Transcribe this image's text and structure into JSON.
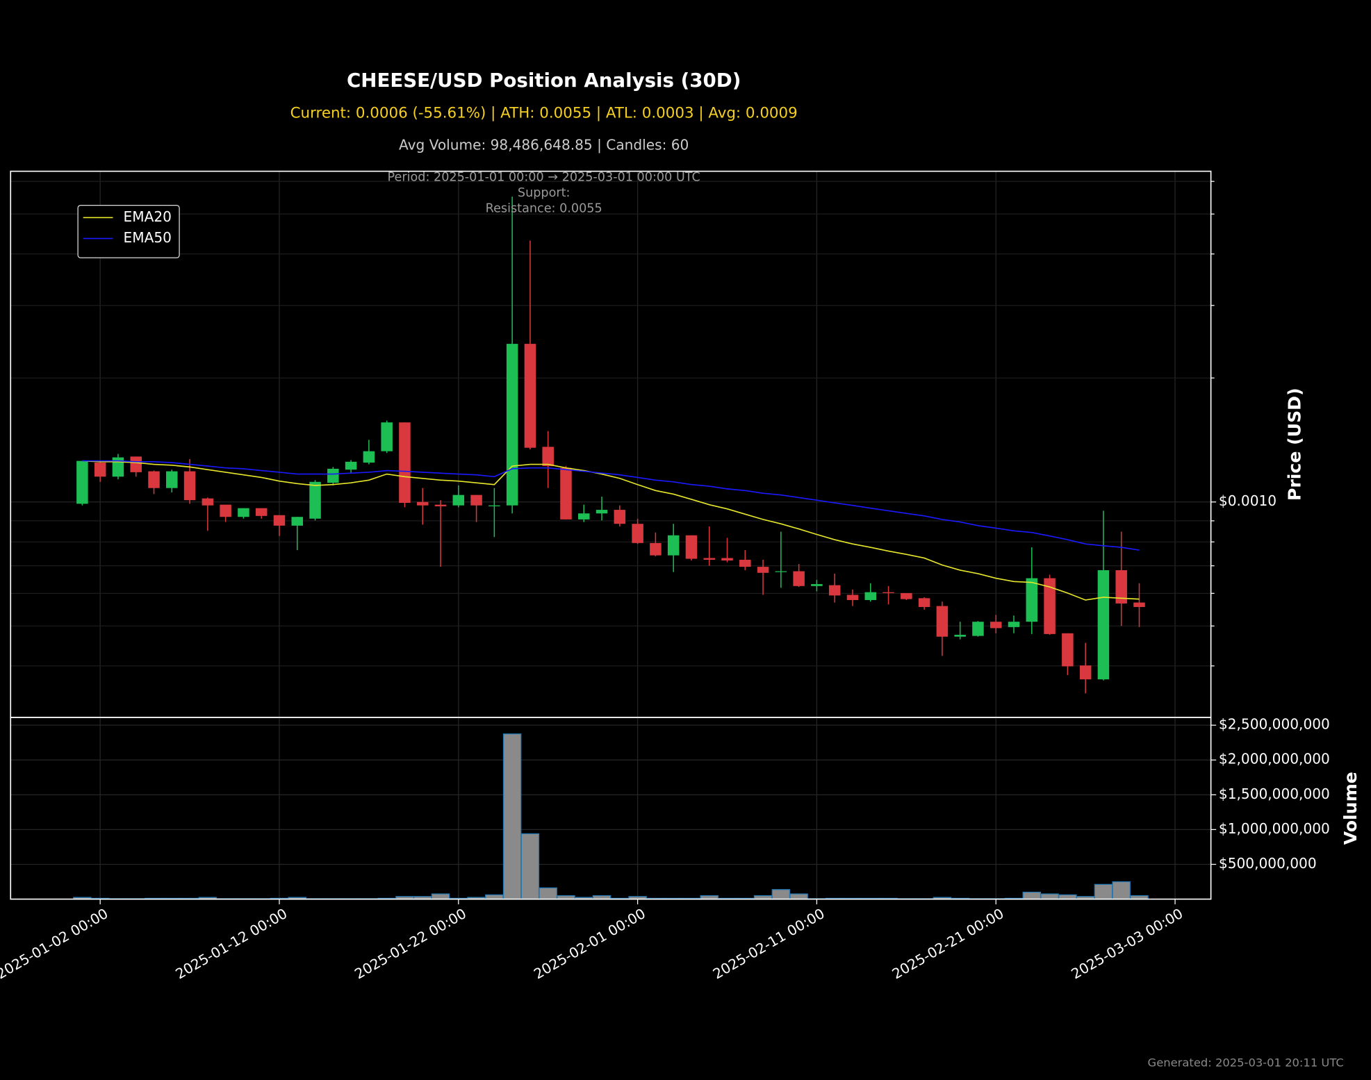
{
  "chart_data": [
    {
      "type": "candlestick",
      "title": "CHEESE/USD Position Analysis (30D)",
      "subtitle": "Current: 0.0006 (-55.61%) | ATH: 0.0055 | ATL: 0.0003 | Avg: 0.0009",
      "stats": "Avg Volume: 98,486,648.85 | Candles: 60",
      "annotations": [
        "Period: 2025-01-01 00:00 → 2025-03-01 00:00 UTC",
        "Support:",
        "Resistance: 0.0055"
      ],
      "ylabel": "Price (USD)",
      "log_scale": true,
      "grid": true,
      "legend": "upper left",
      "up_color": "#1dbf55",
      "down_color": "#d9393e",
      "xlim": [
        "2024-12-28",
        "2025-03-05"
      ],
      "ylim": [
        0.0003,
        0.00635
      ],
      "yticks": [
        {
          "value": 0.001,
          "label": "$0.0010"
        }
      ],
      "yticks_minor": [
        0.0004,
        0.0005,
        0.0006,
        0.0007,
        0.0008,
        0.0009,
        0.002,
        0.003,
        0.004,
        0.005,
        0.006
      ],
      "x": [
        "2025-01-01",
        "2025-01-02",
        "2025-01-03",
        "2025-01-04",
        "2025-01-05",
        "2025-01-06",
        "2025-01-07",
        "2025-01-08",
        "2025-01-09",
        "2025-01-10",
        "2025-01-11",
        "2025-01-12",
        "2025-01-13",
        "2025-01-14",
        "2025-01-15",
        "2025-01-16",
        "2025-01-17",
        "2025-01-18",
        "2025-01-19",
        "2025-01-20",
        "2025-01-21",
        "2025-01-22",
        "2025-01-23",
        "2025-01-24",
        "2025-01-25",
        "2025-01-26",
        "2025-01-27",
        "2025-01-28",
        "2025-01-29",
        "2025-01-30",
        "2025-01-31",
        "2025-02-01",
        "2025-02-02",
        "2025-02-03",
        "2025-02-04",
        "2025-02-05",
        "2025-02-06",
        "2025-02-07",
        "2025-02-08",
        "2025-02-09",
        "2025-02-10",
        "2025-02-11",
        "2025-02-12",
        "2025-02-13",
        "2025-02-14",
        "2025-02-15",
        "2025-02-16",
        "2025-02-17",
        "2025-02-18",
        "2025-02-19",
        "2025-02-20",
        "2025-02-21",
        "2025-02-22",
        "2025-02-23",
        "2025-02-24",
        "2025-02-25",
        "2025-02-26",
        "2025-02-27",
        "2025-02-28",
        "2025-03-01"
      ],
      "open": [
        0.00099,
        0.001246,
        0.001152,
        0.001289,
        0.001187,
        0.001081,
        0.001187,
        0.00102,
        0.000985,
        0.00092,
        0.000966,
        0.000929,
        0.000876,
        0.000911,
        0.001113,
        0.001198,
        0.001246,
        0.001328,
        0.00156,
        0.001,
        0.000985,
        0.000981,
        0.00104,
        0.000976,
        0.000981,
        0.00242,
        0.001361,
        0.00121,
        0.000907,
        0.000938,
        0.000957,
        0.000885,
        0.000795,
        0.000742,
        0.00083,
        0.000731,
        0.000731,
        0.000724,
        0.000696,
        0.000676,
        0.000679,
        0.000625,
        0.000628,
        0.000595,
        0.000578,
        0.000604,
        0.000601,
        0.000584,
        0.000559,
        0.000471,
        0.000473,
        0.000512,
        0.000497,
        0.000512,
        0.000653,
        0.00048,
        0.000401,
        0.000371,
        0.000683,
        0.00057
      ],
      "high": [
        0.001258,
        0.001252,
        0.001308,
        0.001289,
        0.001192,
        0.001198,
        0.001271,
        0.001025,
        0.000985,
        0.000966,
        0.000966,
        0.000929,
        0.00092,
        0.00113,
        0.001216,
        0.001264,
        0.001415,
        0.001576,
        0.00156,
        0.001081,
        0.00101,
        0.001097,
        0.00104,
        0.001081,
        0.00551,
        0.00431,
        0.001486,
        0.001222,
        0.000985,
        0.00103,
        0.000981,
        0.000911,
        0.000843,
        0.000885,
        0.00083,
        0.000872,
        0.000818,
        0.000764,
        0.000724,
        0.000847,
        0.000707,
        0.000647,
        0.00067,
        0.000613,
        0.000635,
        0.000625,
        0.000601,
        0.000587,
        0.000573,
        0.000512,
        0.000514,
        0.000532,
        0.00053,
        0.000776,
        0.000666,
        0.00048,
        0.000455,
        0.000952,
        0.000847,
        0.000635
      ],
      "low": [
        0.000981,
        0.001119,
        0.001135,
        0.001152,
        0.001045,
        0.001055,
        0.00099,
        0.000851,
        0.000894,
        0.000911,
        0.000911,
        0.000827,
        0.000764,
        0.000902,
        0.001097,
        0.001175,
        0.001234,
        0.001315,
        0.000971,
        0.000881,
        0.000696,
        0.000971,
        0.000894,
        0.000822,
        0.000938,
        0.001341,
        0.001081,
        0.000907,
        0.000894,
        0.000902,
        0.000872,
        0.000791,
        0.000738,
        0.000676,
        0.000721,
        0.0007,
        0.000714,
        0.000683,
        0.000595,
        0.000619,
        0.000622,
        0.000607,
        0.00057,
        0.000559,
        0.000573,
        0.000564,
        0.000578,
        0.000548,
        0.000423,
        0.000464,
        0.000471,
        0.00048,
        0.00048,
        0.000478,
        0.000476,
        0.00038,
        0.000343,
        0.000369,
        0.0005,
        0.000497
      ],
      "close": [
        0.001258,
        0.001152,
        0.001283,
        0.001181,
        0.001081,
        0.001187,
        0.00101,
        0.000981,
        0.00092,
        0.000966,
        0.000925,
        0.000876,
        0.00092,
        0.001119,
        0.001204,
        0.001252,
        0.001328,
        0.00156,
        0.000995,
        0.000981,
        0.000976,
        0.00104,
        0.000981,
        0.000981,
        0.00242,
        0.001354,
        0.001222,
        0.000907,
        0.000938,
        0.000957,
        0.000885,
        0.000795,
        0.000742,
        0.00083,
        0.000728,
        0.000724,
        0.000721,
        0.000696,
        0.000673,
        0.000679,
        0.000625,
        0.000632,
        0.000593,
        0.000578,
        0.000604,
        0.000601,
        0.000581,
        0.000556,
        0.000471,
        0.000476,
        0.000512,
        0.000494,
        0.000512,
        0.000653,
        0.000478,
        0.000399,
        0.000371,
        0.000683,
        0.000567,
        0.000556
      ],
      "series": [
        {
          "name": "EMA20",
          "color": "#e6e62a",
          "values": [
            0.001258,
            0.001252,
            0.001252,
            0.001246,
            0.001234,
            0.001228,
            0.001216,
            0.001198,
            0.001181,
            0.001164,
            0.001147,
            0.001124,
            0.001108,
            0.001097,
            0.001102,
            0.001113,
            0.00113,
            0.001169,
            0.001152,
            0.001141,
            0.00113,
            0.001124,
            0.001113,
            0.001102,
            0.001222,
            0.001234,
            0.001234,
            0.00121,
            0.001192,
            0.001169,
            0.001141,
            0.001102,
            0.001066,
            0.001045,
            0.001015,
            0.000985,
            0.000962,
            0.000934,
            0.000907,
            0.000885,
            0.00086,
            0.000834,
            0.00081,
            0.000791,
            0.000776,
            0.00076,
            0.000746,
            0.000731,
            0.000703,
            0.000683,
            0.00067,
            0.000653,
            0.000641,
            0.000638,
            0.000622,
            0.000601,
            0.000578,
            0.000587,
            0.000584,
            0.000581
          ]
        },
        {
          "name": "EMA50",
          "color": "#1a1aff",
          "values": [
            0.001258,
            0.001258,
            0.001258,
            0.001252,
            0.001252,
            0.001246,
            0.001234,
            0.001222,
            0.00121,
            0.001204,
            0.001192,
            0.001181,
            0.001169,
            0.001169,
            0.001169,
            0.001175,
            0.001181,
            0.001192,
            0.001187,
            0.001181,
            0.001175,
            0.001169,
            0.001164,
            0.001152,
            0.001204,
            0.00121,
            0.00121,
            0.001198,
            0.001187,
            0.001175,
            0.001164,
            0.001147,
            0.00113,
            0.001119,
            0.001102,
            0.001092,
            0.001076,
            0.001066,
            0.00105,
            0.00104,
            0.001025,
            0.00101,
            0.000995,
            0.000981,
            0.000966,
            0.000952,
            0.000938,
            0.000925,
            0.000907,
            0.000894,
            0.000876,
            0.000864,
            0.000851,
            0.000843,
            0.000827,
            0.00081,
            0.000791,
            0.000783,
            0.000776,
            0.000764
          ]
        }
      ]
    },
    {
      "type": "bar",
      "ylabel": "Volume",
      "color": "#8a8a8a",
      "edge_color": "#1f77b4",
      "grid": true,
      "xlim": [
        "2024-12-28",
        "2025-03-05"
      ],
      "ylim": [
        0,
        2612500000
      ],
      "yticks": [
        {
          "value": 500000000,
          "label": "$500,000,000"
        },
        {
          "value": 1000000000,
          "label": "$1,000,000,000"
        },
        {
          "value": 1500000000,
          "label": "$1,500,000,000"
        },
        {
          "value": 2000000000,
          "label": "$2,000,000,000"
        },
        {
          "value": 2500000000,
          "label": "$2,500,000,000"
        }
      ],
      "xticks": [
        {
          "value": "2025-01-02",
          "label": "2025-01-02 00:00"
        },
        {
          "value": "2025-01-12",
          "label": "2025-01-12 00:00"
        },
        {
          "value": "2025-01-22",
          "label": "2025-01-22 00:00"
        },
        {
          "value": "2025-02-01",
          "label": "2025-02-01 00:00"
        },
        {
          "value": "2025-02-11",
          "label": "2025-02-11 00:00"
        },
        {
          "value": "2025-02-21",
          "label": "2025-02-21 00:00"
        },
        {
          "value": "2025-03-03",
          "label": "2025-03-03 00:00"
        }
      ],
      "x": [
        "2025-01-01",
        "2025-01-02",
        "2025-01-03",
        "2025-01-04",
        "2025-01-05",
        "2025-01-06",
        "2025-01-07",
        "2025-01-08",
        "2025-01-09",
        "2025-01-10",
        "2025-01-11",
        "2025-01-12",
        "2025-01-13",
        "2025-01-14",
        "2025-01-15",
        "2025-01-16",
        "2025-01-17",
        "2025-01-18",
        "2025-01-19",
        "2025-01-20",
        "2025-01-21",
        "2025-01-22",
        "2025-01-23",
        "2025-01-24",
        "2025-01-25",
        "2025-01-26",
        "2025-01-27",
        "2025-01-28",
        "2025-01-29",
        "2025-01-30",
        "2025-01-31",
        "2025-02-01",
        "2025-02-02",
        "2025-02-03",
        "2025-02-04",
        "2025-02-05",
        "2025-02-06",
        "2025-02-07",
        "2025-02-08",
        "2025-02-09",
        "2025-02-10",
        "2025-02-11",
        "2025-02-12",
        "2025-02-13",
        "2025-02-14",
        "2025-02-15",
        "2025-02-16",
        "2025-02-17",
        "2025-02-18",
        "2025-02-19",
        "2025-02-20",
        "2025-02-21",
        "2025-02-22",
        "2025-02-23",
        "2025-02-24",
        "2025-02-25",
        "2025-02-26",
        "2025-02-27",
        "2025-02-28",
        "2025-03-01"
      ],
      "values": [
        25000000,
        12000000,
        6000000,
        6000000,
        12000000,
        12000000,
        12000000,
        25000000,
        6000000,
        6000000,
        6000000,
        12000000,
        25000000,
        6000000,
        6000000,
        6000000,
        6000000,
        12000000,
        38000000,
        38000000,
        75000000,
        12000000,
        25000000,
        62000000,
        2375000000,
        940000000,
        162000000,
        50000000,
        25000000,
        50000000,
        12000000,
        38000000,
        12000000,
        12000000,
        12000000,
        50000000,
        12000000,
        12000000,
        50000000,
        138000000,
        75000000,
        6000000,
        12000000,
        12000000,
        12000000,
        12000000,
        6000000,
        6000000,
        25000000,
        12000000,
        6000000,
        6000000,
        12000000,
        100000000,
        75000000,
        62000000,
        38000000,
        212000000,
        250000000,
        50000000
      ]
    }
  ],
  "footer": "Generated: 2025-03-01 20:11 UTC"
}
